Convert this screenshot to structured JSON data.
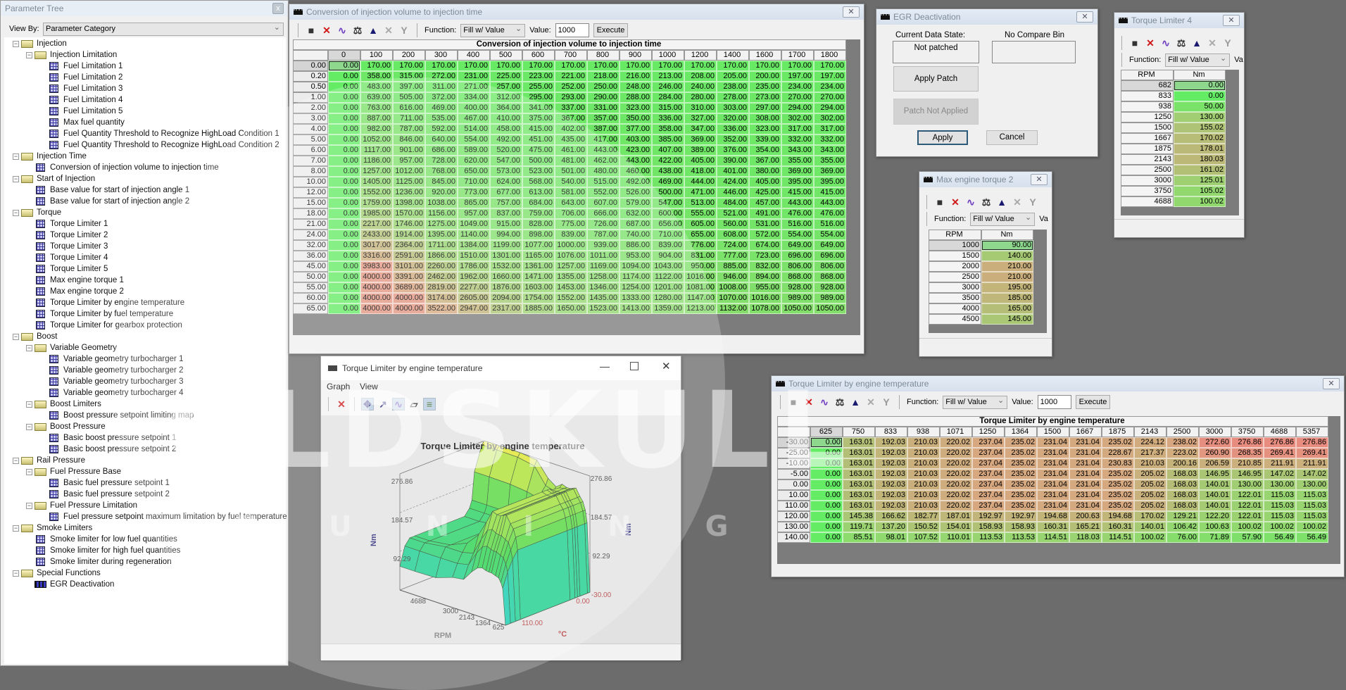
{
  "sidebar": {
    "title": "Parameter Tree",
    "close": "x",
    "view_by_label": "View By:",
    "view_by_value": "Parameter Category",
    "tree": [
      {
        "d": 0,
        "t": "folder",
        "label": "Injection"
      },
      {
        "d": 1,
        "t": "folder",
        "label": "Injection Limitation"
      },
      {
        "d": 2,
        "t": "table",
        "label": "Fuel Limitation 1"
      },
      {
        "d": 2,
        "t": "table",
        "label": "Fuel Limitation 2"
      },
      {
        "d": 2,
        "t": "table",
        "label": "Fuel Limitation 3"
      },
      {
        "d": 2,
        "t": "table",
        "label": "Fuel Limitation 4"
      },
      {
        "d": 2,
        "t": "table",
        "label": "Fuel Limitation 5"
      },
      {
        "d": 2,
        "t": "table",
        "label": "Max fuel quantity"
      },
      {
        "d": 2,
        "t": "table",
        "label": "Fuel Quantity Threshold to Recognize HighLoad Condition 1"
      },
      {
        "d": 2,
        "t": "table",
        "label": "Fuel Quantity Threshold to Recognize HighLoad Condition 2"
      },
      {
        "d": 0,
        "t": "folder",
        "label": "Injection Time"
      },
      {
        "d": 1,
        "t": "table",
        "label": "Conversion of injection volume to injection time"
      },
      {
        "d": 0,
        "t": "folder",
        "label": "Start of Injection"
      },
      {
        "d": 1,
        "t": "table",
        "label": "Base value for start of injection angle 1"
      },
      {
        "d": 1,
        "t": "table",
        "label": "Base value for start of injection angle 2"
      },
      {
        "d": 0,
        "t": "folder",
        "label": "Torque"
      },
      {
        "d": 1,
        "t": "table",
        "label": "Torque Limiter 1"
      },
      {
        "d": 1,
        "t": "table",
        "label": "Torque Limiter 2"
      },
      {
        "d": 1,
        "t": "table",
        "label": "Torque Limiter 3"
      },
      {
        "d": 1,
        "t": "table",
        "label": "Torque Limiter 4"
      },
      {
        "d": 1,
        "t": "table",
        "label": "Torque Limiter 5"
      },
      {
        "d": 1,
        "t": "table",
        "label": "Max engine torque 1"
      },
      {
        "d": 1,
        "t": "table",
        "label": "Max engine torque 2"
      },
      {
        "d": 1,
        "t": "table",
        "label": "Torque Limiter by engine temperature"
      },
      {
        "d": 1,
        "t": "table",
        "label": "Torque Limiter by fuel temperature"
      },
      {
        "d": 1,
        "t": "table",
        "label": "Torque Limiter for gearbox protection"
      },
      {
        "d": 0,
        "t": "folder",
        "label": "Boost"
      },
      {
        "d": 1,
        "t": "folder",
        "label": "Variable Geometry"
      },
      {
        "d": 2,
        "t": "table",
        "label": "Variable geometry turbocharger 1"
      },
      {
        "d": 2,
        "t": "table",
        "label": "Variable geometry turbocharger 2"
      },
      {
        "d": 2,
        "t": "table",
        "label": "Variable geometry turbocharger 3"
      },
      {
        "d": 2,
        "t": "table",
        "label": "Variable geometry turbocharger 4"
      },
      {
        "d": 1,
        "t": "folder",
        "label": "Boost Limiters"
      },
      {
        "d": 2,
        "t": "table",
        "label": "Boost pressure setpoint limiting map"
      },
      {
        "d": 1,
        "t": "folder",
        "label": "Boost Pressure"
      },
      {
        "d": 2,
        "t": "table",
        "label": "Basic boost pressure setpoint 1"
      },
      {
        "d": 2,
        "t": "table",
        "label": "Basic boost pressure setpoint 2"
      },
      {
        "d": 0,
        "t": "folder",
        "label": "Rail Pressure"
      },
      {
        "d": 1,
        "t": "folder",
        "label": "Fuel Pressure Base"
      },
      {
        "d": 2,
        "t": "table",
        "label": "Basic fuel pressure setpoint 1"
      },
      {
        "d": 2,
        "t": "table",
        "label": "Basic fuel pressure setpoint 2"
      },
      {
        "d": 1,
        "t": "folder",
        "label": "Fuel Pressure Limitation"
      },
      {
        "d": 2,
        "t": "table",
        "label": "Fuel pressure setpoint maximum limitation by fuel temperature"
      },
      {
        "d": 0,
        "t": "folder",
        "label": "Smoke Limiters"
      },
      {
        "d": 1,
        "t": "table",
        "label": "Smoke limiter for low fuel quantities"
      },
      {
        "d": 1,
        "t": "table",
        "label": "Smoke limiter for high fuel quantities"
      },
      {
        "d": 1,
        "t": "table",
        "label": "Smoke limiter during regeneration"
      },
      {
        "d": 0,
        "t": "folder",
        "label": "Special Functions"
      },
      {
        "d": 1,
        "t": "patch",
        "label": "EGR Deactivation"
      }
    ]
  },
  "toolbar": {
    "function_label": "Function:",
    "function_value": "Fill w/ Value",
    "value_label": "Value:",
    "value": "1000",
    "execute": "Execute",
    "value_label_truncated": "Va",
    "icons": [
      "save-icon",
      "delete-icon",
      "graph-icon",
      "scale-icon",
      "interpolate-icon",
      "clear-icon",
      "smooth-icon"
    ]
  },
  "injection_window": {
    "title": "Conversion of injection volume to injection time",
    "table_title": "Conversion of injection volume to injection time",
    "col_headers": [
      "0",
      "100",
      "200",
      "300",
      "400",
      "500",
      "600",
      "700",
      "800",
      "900",
      "1000",
      "1200",
      "1400",
      "1600",
      "1700",
      "1800"
    ],
    "row_headers": [
      "0.00",
      "0.20",
      "0.50",
      "1.00",
      "2.00",
      "3.00",
      "4.00",
      "5.00",
      "6.00",
      "7.00",
      "8.00",
      "10.00",
      "12.00",
      "15.00",
      "18.00",
      "21.00",
      "24.00",
      "32.00",
      "36.00",
      "45.00",
      "50.00",
      "55.00",
      "60.00",
      "65.00"
    ],
    "values": [
      [
        0,
        170,
        170,
        170,
        170,
        170,
        170,
        170,
        170,
        170,
        170,
        170,
        170,
        170,
        170,
        170
      ],
      [
        0,
        358,
        315,
        272,
        231,
        225,
        223,
        221,
        218,
        216,
        213,
        208,
        205,
        200,
        197,
        197
      ],
      [
        0,
        483,
        397,
        311,
        271,
        257,
        255,
        252,
        250,
        248,
        246,
        240,
        238,
        235,
        234,
        234
      ],
      [
        0,
        639,
        505,
        372,
        334,
        312,
        295,
        293,
        290,
        288,
        284,
        280,
        278,
        273,
        270,
        270
      ],
      [
        0,
        763,
        616,
        469,
        400,
        364,
        341,
        337,
        331,
        323,
        315,
        310,
        303,
        297,
        294,
        294
      ],
      [
        0,
        887,
        711,
        535,
        467,
        410,
        375,
        367,
        357,
        350,
        336,
        327,
        320,
        308,
        302,
        302
      ],
      [
        0,
        982,
        787,
        592,
        514,
        458,
        415,
        402,
        387,
        377,
        358,
        347,
        336,
        323,
        317,
        317
      ],
      [
        0,
        1052,
        846,
        640,
        554,
        492,
        451,
        435,
        417,
        403,
        385,
        369,
        352,
        339,
        332,
        332
      ],
      [
        0,
        1117,
        901,
        686,
        589,
        520,
        475,
        461,
        443,
        423,
        407,
        389,
        376,
        354,
        343,
        343
      ],
      [
        0,
        1186,
        957,
        728,
        620,
        547,
        500,
        481,
        462,
        443,
        422,
        405,
        390,
        367,
        355,
        355
      ],
      [
        0,
        1257,
        1012,
        768,
        650,
        573,
        523,
        501,
        480,
        460,
        438,
        418,
        401,
        380,
        369,
        369
      ],
      [
        0,
        1405,
        1125,
        845,
        710,
        624,
        568,
        540,
        515,
        492,
        469,
        444,
        424,
        405,
        395,
        395
      ],
      [
        0,
        1552,
        1236,
        920,
        773,
        677,
        613,
        581,
        552,
        526,
        500,
        471,
        446,
        425,
        415,
        415
      ],
      [
        0,
        1759,
        1398,
        1038,
        865,
        757,
        684,
        643,
        607,
        579,
        547,
        513,
        484,
        457,
        443,
        443
      ],
      [
        0,
        1985,
        1570,
        1156,
        957,
        837,
        759,
        706,
        666,
        632,
        600,
        555,
        521,
        491,
        476,
        476
      ],
      [
        0,
        2217,
        1746,
        1275,
        1049,
        915,
        828,
        775,
        726,
        687,
        656,
        605,
        560,
        531,
        516,
        516
      ],
      [
        0,
        2433,
        1914,
        1395,
        1140,
        994,
        898,
        839,
        787,
        740,
        710,
        655,
        608,
        572,
        554,
        554
      ],
      [
        0,
        3017,
        2364,
        1711,
        1384,
        1199,
        1077,
        1000,
        939,
        886,
        839,
        776,
        724,
        674,
        649,
        649
      ],
      [
        0,
        3316,
        2591,
        1866,
        1510,
        1301,
        1165,
        1076,
        1011,
        953,
        904,
        831,
        777,
        723,
        696,
        696
      ],
      [
        0,
        3983,
        3101,
        2260,
        1786,
        1532,
        1361,
        1257,
        1169,
        1094,
        1043,
        950,
        885,
        832,
        806,
        806
      ],
      [
        0,
        4000,
        3391,
        2462,
        1962,
        1660,
        1471,
        1355,
        1258,
        1174,
        1122,
        1016,
        946,
        894,
        868,
        868
      ],
      [
        0,
        4000,
        3689,
        2819,
        2277,
        1876,
        1603,
        1453,
        1346,
        1254,
        1201,
        1081,
        1008,
        955,
        928,
        928
      ],
      [
        0,
        4000,
        4000,
        3174,
        2605,
        2094,
        1754,
        1552,
        1435,
        1333,
        1280,
        1147,
        1070,
        1016,
        989,
        989
      ],
      [
        0,
        4000,
        4000,
        3522,
        2947,
        2317,
        1885,
        1650,
        1523,
        1413,
        1359,
        1213,
        1132,
        1078,
        1050,
        1050
      ]
    ]
  },
  "torque_temp_window": {
    "title": "Torque Limiter by engine temperature",
    "table_title": "Torque Limiter by engine temperature",
    "col_headers": [
      "625",
      "750",
      "833",
      "938",
      "1071",
      "1250",
      "1364",
      "1500",
      "1667",
      "1875",
      "2143",
      "2500",
      "3000",
      "3750",
      "4688",
      "5357"
    ],
    "row_headers": [
      "-30.00",
      "-25.00",
      "-10.00",
      "-5.00",
      "0.00",
      "10.00",
      "110.00",
      "120.00",
      "130.00",
      "140.00"
    ],
    "values": [
      [
        0,
        163.01,
        192.03,
        210.03,
        220.02,
        237.04,
        235.02,
        231.04,
        231.04,
        235.02,
        224.12,
        238.02,
        272.6,
        276.86,
        276.86,
        276.86
      ],
      [
        0,
        163.01,
        192.03,
        210.03,
        220.02,
        237.04,
        235.02,
        231.04,
        231.04,
        228.67,
        217.37,
        223.02,
        260.9,
        268.35,
        269.41,
        269.41
      ],
      [
        0,
        163.01,
        192.03,
        210.03,
        220.02,
        237.04,
        235.02,
        231.04,
        231.04,
        230.83,
        210.03,
        200.16,
        206.59,
        210.85,
        211.91,
        211.91
      ],
      [
        0,
        163.01,
        192.03,
        210.03,
        220.02,
        237.04,
        235.02,
        231.04,
        231.04,
        235.02,
        205.02,
        168.03,
        146.95,
        146.95,
        147.02,
        147.02
      ],
      [
        0,
        163.01,
        192.03,
        210.03,
        220.02,
        237.04,
        235.02,
        231.04,
        231.04,
        235.02,
        205.02,
        168.03,
        140.01,
        130.0,
        130.0,
        130.0
      ],
      [
        0,
        163.01,
        192.03,
        210.03,
        220.02,
        237.04,
        235.02,
        231.04,
        231.04,
        235.02,
        205.02,
        168.03,
        140.01,
        122.01,
        115.03,
        115.03
      ],
      [
        0,
        163.01,
        192.03,
        210.03,
        220.02,
        237.04,
        235.02,
        231.04,
        231.04,
        235.02,
        205.02,
        168.03,
        140.01,
        122.01,
        115.03,
        115.03
      ],
      [
        0,
        145.38,
        166.62,
        182.77,
        187.01,
        192.97,
        192.97,
        194.68,
        200.63,
        194.68,
        170.02,
        129.21,
        122.2,
        122.01,
        115.03,
        115.03
      ],
      [
        0,
        119.71,
        137.2,
        150.52,
        154.01,
        158.93,
        158.93,
        160.31,
        165.21,
        160.31,
        140.01,
        106.42,
        100.63,
        100.02,
        100.02,
        100.02
      ],
      [
        0,
        85.51,
        98.01,
        107.52,
        110.01,
        113.53,
        113.53,
        114.51,
        118.03,
        114.51,
        100.02,
        76.0,
        71.89,
        57.9,
        56.49,
        56.49
      ]
    ]
  },
  "egr_window": {
    "title": "EGR Deactivation",
    "state_label": "Current Data State:",
    "state_value": "Not patched",
    "compare_label": "No Compare Bin",
    "compare_value": "",
    "apply_patch": "Apply Patch",
    "patch_status": "Patch Not Applied",
    "apply": "Apply",
    "cancel": "Cancel"
  },
  "max_torque2_window": {
    "title": "Max engine torque 2",
    "col_headers": [
      "RPM",
      "Nm"
    ],
    "rpm": [
      "1000",
      "1500",
      "2000",
      "2500",
      "3000",
      "3500",
      "4000",
      "4500"
    ],
    "nm": [
      90,
      140,
      210,
      210,
      195,
      185,
      165,
      145
    ]
  },
  "torque_limiter4_window": {
    "title": "Torque Limiter 4",
    "col_headers": [
      "RPM",
      "Nm"
    ],
    "rpm": [
      "682",
      "833",
      "938",
      "1250",
      "1500",
      "1667",
      "1875",
      "2143",
      "2500",
      "3000",
      "3750",
      "4688"
    ],
    "nm": [
      0,
      0,
      50,
      130,
      155.02,
      170.02,
      178.01,
      180.03,
      161.02,
      125.01,
      105.02,
      100.02
    ]
  },
  "graph_window": {
    "title": "Torque Limiter by engine temperature",
    "menu": [
      "Graph",
      "View"
    ],
    "chart_title": "Torque Limiter by engine temperature",
    "z_label": "Nm",
    "z_ticks": [
      "276.86",
      "184.57",
      "92.29"
    ],
    "x_label": "RPM",
    "x_ticks": [
      "4688",
      "3000",
      "2143",
      "1364",
      "625"
    ],
    "y_label": "°C",
    "y_ticks": [
      "-30.00",
      "0.00",
      "110.00"
    ],
    "icons": [
      "delete-icon",
      "move-icon",
      "rotate-icon",
      "surface-icon",
      "wireframe-icon",
      "legend-icon"
    ]
  },
  "watermark": {
    "line1": "OLDSKULL",
    "line2": "TUNING"
  },
  "colors": {
    "desktop": "#6c6c6c",
    "cell_low": "#64ec64",
    "cell_mid": "#bcb878",
    "cell_high": "#e88c80",
    "surface_low": "#00c8e6",
    "surface_mid": "#28d23c",
    "surface_high": "#e6e628"
  }
}
